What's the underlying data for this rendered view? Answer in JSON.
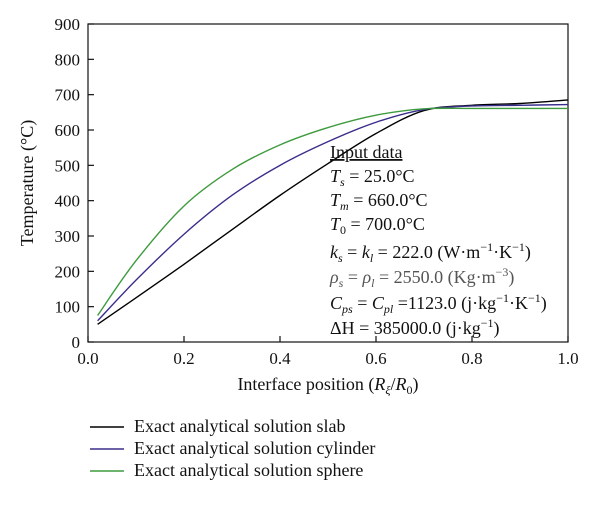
{
  "chart_data": {
    "type": "line",
    "xlabel": "Interface position (R_ξ/R_0)",
    "ylabel": "Temperature (°C)",
    "xlim": [
      0.0,
      1.0
    ],
    "ylim": [
      0,
      900
    ],
    "x_ticks": [
      "0.0",
      "0.2",
      "0.4",
      "0.6",
      "0.8",
      "1.0"
    ],
    "y_ticks": [
      "0",
      "100",
      "200",
      "300",
      "400",
      "500",
      "600",
      "700",
      "800",
      "900"
    ],
    "grid": false,
    "legend_position": "bottom",
    "series": [
      {
        "name": "Exact analytical solution slab",
        "color": "#000000",
        "x": [
          0.02,
          0.1,
          0.2,
          0.3,
          0.4,
          0.5,
          0.6,
          0.7,
          0.8,
          0.9,
          1.0
        ],
        "y": [
          50,
          125,
          220,
          318,
          415,
          505,
          590,
          655,
          670,
          675,
          685
        ]
      },
      {
        "name": "Exact analytical solution cylinder",
        "color": "#3a2e8c",
        "x": [
          0.02,
          0.1,
          0.2,
          0.3,
          0.4,
          0.5,
          0.6,
          0.7,
          0.8,
          0.9,
          1.0
        ],
        "y": [
          60,
          175,
          305,
          415,
          500,
          567,
          622,
          658,
          668,
          670,
          672
        ]
      },
      {
        "name": "Exact analytical solution sphere",
        "color": "#3e9a3e",
        "x": [
          0.02,
          0.1,
          0.2,
          0.3,
          0.4,
          0.5,
          0.6,
          0.7,
          0.8,
          0.9,
          1.0
        ],
        "y": [
          75,
          230,
          385,
          488,
          558,
          607,
          642,
          660,
          661,
          661,
          661
        ]
      }
    ],
    "annotation": {
      "heading": "Input data",
      "lines": [
        "T_s = 25.0°C",
        "T_m = 660.0°C",
        "T_0 = 700.0°C",
        "k_s = k_l = 222.0 (W·m^-1·K^-1)",
        "ρ_s = ρ_l = 2550.0 (Kg·m^-3)",
        "C_ps = C_pl = 1123.0 (j·kg^-1·K^-1)",
        "ΔH = 385000.0 (j·kg^-1)"
      ]
    }
  }
}
